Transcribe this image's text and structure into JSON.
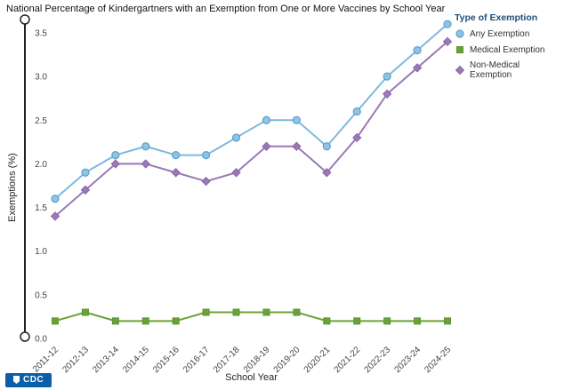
{
  "page": {
    "background": "#ffffff"
  },
  "chart_data": {
    "type": "line",
    "title": "National Percentage of Kindergartners with an Exemption from One or More Vaccines by School Year",
    "xlabel": "School Year",
    "ylabel": "Exemptions (%)",
    "ylim": [
      0,
      3.5
    ],
    "ytick_step": 0.5,
    "grid": false,
    "legend_title": "Type of Exemption",
    "legend_position": "top-right",
    "categories": [
      "2011-12",
      "2012-13",
      "2013-14",
      "2014-15",
      "2015-16",
      "2016-17",
      "2017-18",
      "2018-19",
      "2019-20",
      "2020-21",
      "2021-22",
      "2022-23",
      "2023-24",
      "2024-25"
    ],
    "series": [
      {
        "name": "Any Exemption",
        "marker": "circle",
        "color": "#5e9fcd",
        "line_color": "#7db9de",
        "marker_fill": "#8ec4e4",
        "values": [
          1.6,
          1.9,
          2.1,
          2.2,
          2.1,
          2.1,
          2.3,
          2.5,
          2.5,
          2.2,
          2.6,
          3.0,
          3.3,
          3.6
        ]
      },
      {
        "name": "Medical Exemption",
        "marker": "square",
        "color": "#5d9231",
        "line_color": "#69a338",
        "marker_fill": "#69a338",
        "values": [
          0.2,
          0.3,
          0.2,
          0.2,
          0.2,
          0.3,
          0.3,
          0.3,
          0.3,
          0.2,
          0.2,
          0.2,
          0.2,
          0.2
        ]
      },
      {
        "name": "Non-Medical Exemption",
        "marker": "diamond",
        "color": "#8a67a8",
        "line_color": "#9a79b5",
        "marker_fill": "#9a79b5",
        "values": [
          1.4,
          1.7,
          2.0,
          2.0,
          1.9,
          1.8,
          1.9,
          2.2,
          2.2,
          1.9,
          2.3,
          2.8,
          3.1,
          3.4
        ]
      }
    ]
  },
  "footer": {
    "logo_text": "CDC",
    "logo_color": "#0b5fa8"
  }
}
